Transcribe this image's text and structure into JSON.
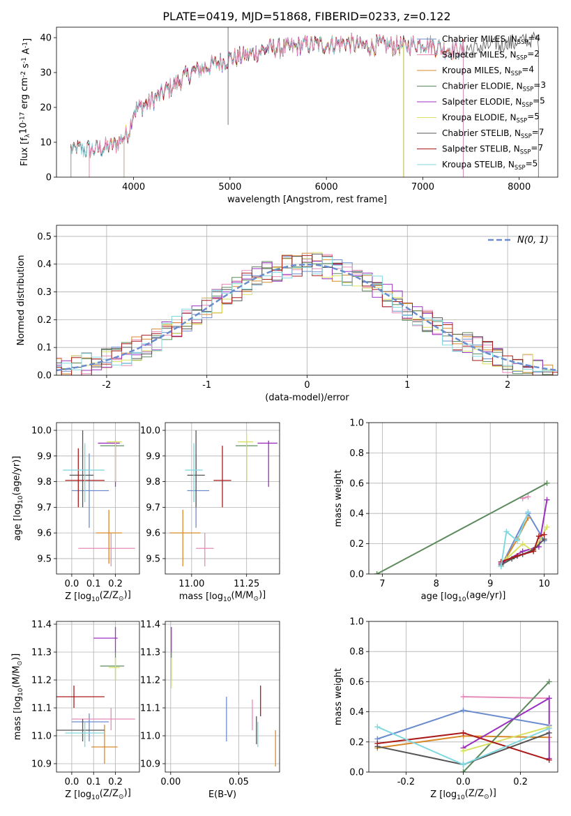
{
  "figure_title": "PLATE=0419, MJD=51868, FIBERID=0233, z=0.122",
  "model_colors": [
    "#6a8ccf",
    "#e68ab8",
    "#d88a2a",
    "#5c8a5c",
    "#9b30c0",
    "#d8e060",
    "#555555",
    "#aa1a1a",
    "#80d8e0"
  ],
  "chart_data": [
    {
      "id": "spectrum",
      "type": "line",
      "title": "PLATE=0419, MJD=51868, FIBERID=0233, z=0.122",
      "xlabel": "wavelength [Angstrom, rest frame]",
      "ylabel": "Flux [f$_\\lambda$10$^{-17}$ erg cm$^{-2}$ s$^{-1}$ A$^{-1}$]",
      "xlim": [
        3200,
        8400
      ],
      "ylim": [
        0,
        43
      ],
      "xticks": [
        4000,
        5000,
        6000,
        7000,
        8000
      ],
      "yticks": [
        0,
        10,
        20,
        30,
        40
      ],
      "grid": false,
      "legend_position": "upper right",
      "continuum": {
        "x": [
          3400,
          3600,
          3800,
          3950,
          4000,
          4200,
          4400,
          4600,
          4800,
          5000,
          5200,
          5400,
          5600,
          5800,
          6000,
          6200,
          6400,
          6600,
          6800,
          7000,
          7200,
          7400,
          7600,
          7800,
          8000,
          8200
        ],
        "y": [
          8,
          8,
          9,
          13,
          19,
          22,
          26,
          30,
          32,
          34,
          35,
          37,
          37,
          38,
          38,
          38.5,
          37.5,
          38,
          37.5,
          38.5,
          37,
          36.5,
          37,
          38,
          39,
          39.5
        ]
      },
      "series": [
        {
          "name": "Chabrier MILES, N$_{SSP}$=4",
          "x_range": [
            3540,
            7420
          ]
        },
        {
          "name": "Salpeter MILES, N$_{SSP}$=2",
          "x_range": [
            3540,
            7420
          ]
        },
        {
          "name": "Kroupa MILES, N$_{SSP}$=4",
          "x_range": [
            3540,
            7420
          ]
        },
        {
          "name": "Chabrier ELODIE, N$_{SSP}$=3",
          "x_range": [
            3900,
            6800
          ]
        },
        {
          "name": "Salpeter ELODIE, N$_{SSP}$=5",
          "x_range": [
            3900,
            6800
          ]
        },
        {
          "name": "Kroupa ELODIE, N$_{SSP}$=5",
          "x_range": [
            3900,
            6800
          ]
        },
        {
          "name": "Chabrier STELIB, N$_{SSP}$=7",
          "x_range": [
            3350,
            8200
          ]
        },
        {
          "name": "Salpeter STELIB, N$_{SSP}$=7",
          "x_range": [
            3350,
            7420
          ]
        },
        {
          "name": "Kroupa STELIB, N$_{SSP}$=5",
          "x_range": [
            3350,
            7420
          ]
        }
      ]
    },
    {
      "id": "residuals",
      "type": "histogram",
      "xlabel": "(data-model)/error",
      "ylabel": "Normed distribution",
      "xlim": [
        -2.5,
        2.5
      ],
      "ylim": [
        0,
        0.54
      ],
      "xticks": [
        -2,
        -1,
        0,
        1,
        2
      ],
      "yticks": [
        0.0,
        0.1,
        0.2,
        0.3,
        0.4,
        0.5
      ],
      "grid": true,
      "legend_position": "upper right",
      "bin_width": 0.1,
      "reference_curve": {
        "name": "$\\mathcal{N}(0,1)$",
        "color": "#6a8ccf",
        "style": "dashed"
      }
    },
    {
      "id": "age_vs_Z",
      "type": "errorbar",
      "xlabel": "Z [log$_{10}$(Z/Z$_\\odot$)]",
      "ylabel": "age  [log$_{10}$(age/yr)]",
      "xlim": [
        -0.07,
        0.31
      ],
      "ylim": [
        9.44,
        10.03
      ],
      "xticks": [
        0.0,
        0.1,
        0.2
      ],
      "yticks": [
        9.5,
        9.6,
        9.7,
        9.8,
        9.9,
        10.0
      ],
      "grid": true,
      "points": [
        {
          "x": 0.08,
          "y": 9.765,
          "xlo": 0.0,
          "xhi": 0.17,
          "ylo": 9.62,
          "yhi": 9.91
        },
        {
          "x": 0.18,
          "y": 9.54,
          "xlo": 0.03,
          "xhi": 0.29,
          "ylo": 9.47,
          "yhi": 9.6
        },
        {
          "x": 0.17,
          "y": 9.6,
          "xlo": 0.11,
          "xhi": 0.23,
          "ylo": 9.48,
          "yhi": 9.69
        },
        {
          "x": 0.2,
          "y": 9.94,
          "xlo": 0.13,
          "xhi": 0.24,
          "ylo": 9.8,
          "yhi": 9.96
        },
        {
          "x": 0.2,
          "y": 9.95,
          "xlo": 0.12,
          "xhi": 0.22,
          "ylo": 9.78,
          "yhi": 9.96
        },
        {
          "x": 0.2,
          "y": 9.955,
          "xlo": 0.16,
          "xhi": 0.23,
          "ylo": 9.8,
          "yhi": 9.96
        },
        {
          "x": 0.05,
          "y": 9.825,
          "xlo": -0.01,
          "xhi": 0.1,
          "ylo": 9.7,
          "yhi": 10.0
        },
        {
          "x": 0.03,
          "y": 9.805,
          "xlo": -0.03,
          "xhi": 0.15,
          "ylo": 9.7,
          "yhi": 9.93
        },
        {
          "x": 0.06,
          "y": 9.845,
          "xlo": -0.04,
          "xhi": 0.15,
          "ylo": 9.72,
          "yhi": 9.95
        }
      ]
    },
    {
      "id": "age_vs_mass",
      "type": "errorbar",
      "xlabel": "mass [log$_{10}$(M/M$_\\odot$)]",
      "ylabel": "",
      "xlim": [
        10.88,
        11.4
      ],
      "ylim": [
        9.44,
        10.03
      ],
      "xticks": [
        11.0,
        11.25
      ],
      "yticks": [
        9.5,
        9.6,
        9.7,
        9.8,
        9.9,
        10.0
      ],
      "grid": true,
      "points": [
        {
          "x": 11.02,
          "y": 9.765,
          "xlo": 10.98,
          "xhi": 11.08,
          "ylo": 9.62,
          "yhi": 9.91
        },
        {
          "x": 11.06,
          "y": 9.54,
          "xlo": 11.02,
          "xhi": 11.1,
          "ylo": 9.47,
          "yhi": 9.6
        },
        {
          "x": 10.96,
          "y": 9.6,
          "xlo": 10.9,
          "xhi": 11.04,
          "ylo": 9.47,
          "yhi": 9.69
        },
        {
          "x": 11.25,
          "y": 9.94,
          "xlo": 11.2,
          "xhi": 11.3,
          "ylo": 9.8,
          "yhi": 9.96
        },
        {
          "x": 11.35,
          "y": 9.95,
          "xlo": 11.3,
          "xhi": 11.39,
          "ylo": 9.78,
          "yhi": 9.96
        },
        {
          "x": 11.25,
          "y": 9.955,
          "xlo": 11.21,
          "xhi": 11.28,
          "ylo": 9.8,
          "yhi": 9.99
        },
        {
          "x": 11.02,
          "y": 9.825,
          "xlo": 10.98,
          "xhi": 11.06,
          "ylo": 9.7,
          "yhi": 10.0
        },
        {
          "x": 11.14,
          "y": 9.805,
          "xlo": 11.1,
          "xhi": 11.18,
          "ylo": 9.7,
          "yhi": 9.94
        },
        {
          "x": 11.01,
          "y": 9.845,
          "xlo": 10.97,
          "xhi": 11.05,
          "ylo": 9.72,
          "yhi": 9.95
        }
      ]
    },
    {
      "id": "weight_vs_age",
      "type": "line",
      "xlabel": "age  [log$_{10}$(age/yr)]",
      "ylabel": "mass weight",
      "xlim": [
        6.75,
        10.25
      ],
      "ylim": [
        0,
        1
      ],
      "xticks": [
        7,
        8,
        9,
        10
      ],
      "yticks": [
        0.0,
        0.2,
        0.4,
        0.6,
        0.8,
        1.0
      ],
      "grid": true,
      "series": [
        {
          "x": [
            9.2,
            9.7,
            10.0
          ],
          "y": [
            0.05,
            0.4,
            0.22
          ]
        },
        {
          "x": [
            9.6,
            9.7
          ],
          "y": [
            0.5,
            0.51
          ]
        },
        {
          "x": [
            9.2,
            9.5,
            9.7
          ],
          "y": [
            0.05,
            0.23,
            0.37
          ]
        },
        {
          "x": [
            6.9,
            10.05
          ],
          "y": [
            0.0,
            0.6
          ]
        },
        {
          "x": [
            9.2,
            9.6,
            9.9,
            10.05
          ],
          "y": [
            0.07,
            0.15,
            0.18,
            0.49
          ]
        },
        {
          "x": [
            9.3,
            9.6,
            9.8,
            10.05
          ],
          "y": [
            0.1,
            0.2,
            0.15,
            0.31
          ]
        },
        {
          "x": [
            9.2,
            9.4,
            9.6,
            9.8,
            10.0
          ],
          "y": [
            0.06,
            0.1,
            0.13,
            0.16,
            0.23
          ]
        },
        {
          "x": [
            9.2,
            9.5,
            9.8,
            9.9,
            10.0
          ],
          "y": [
            0.08,
            0.12,
            0.15,
            0.25,
            0.26
          ]
        },
        {
          "x": [
            9.2,
            9.3,
            9.5,
            9.7
          ],
          "y": [
            0.05,
            0.28,
            0.22,
            0.41
          ]
        }
      ]
    },
    {
      "id": "mass_vs_Z",
      "type": "errorbar",
      "xlabel": "Z [log$_{10}$(Z/Z$_\\odot$)]",
      "ylabel": "mass [log$_{10}$(M/M$_\\odot$)]",
      "xlim": [
        -0.07,
        0.31
      ],
      "ylim": [
        10.87,
        11.41
      ],
      "xticks": [
        0.0,
        0.1,
        0.2
      ],
      "yticks": [
        10.9,
        11.0,
        11.1,
        11.2,
        11.3,
        11.4
      ],
      "grid": true,
      "points": [
        {
          "x": 0.08,
          "y": 11.05,
          "xlo": 0.0,
          "xhi": 0.17,
          "ylo": 10.98,
          "yhi": 11.08
        },
        {
          "x": 0.18,
          "y": 11.06,
          "xlo": 0.0,
          "xhi": 0.29,
          "ylo": 11.02,
          "yhi": 11.1
        },
        {
          "x": 0.15,
          "y": 10.96,
          "xlo": 0.09,
          "xhi": 0.21,
          "ylo": 10.9,
          "yhi": 11.04
        },
        {
          "x": 0.2,
          "y": 11.25,
          "xlo": 0.13,
          "xhi": 0.24,
          "ylo": 11.2,
          "yhi": 11.3
        },
        {
          "x": 0.2,
          "y": 11.35,
          "xlo": 0.1,
          "xhi": 0.21,
          "ylo": 11.3,
          "yhi": 11.39
        },
        {
          "x": 0.2,
          "y": 11.245,
          "xlo": 0.17,
          "xhi": 0.22,
          "ylo": 11.2,
          "yhi": 11.28
        },
        {
          "x": 0.05,
          "y": 11.02,
          "xlo": -0.07,
          "xhi": 0.15,
          "ylo": 10.98,
          "yhi": 11.06
        },
        {
          "x": 0.01,
          "y": 11.14,
          "xlo": -0.07,
          "xhi": 0.15,
          "ylo": 11.1,
          "yhi": 11.18
        },
        {
          "x": 0.06,
          "y": 11.01,
          "xlo": -0.03,
          "xhi": 0.15,
          "ylo": 10.96,
          "yhi": 11.05
        }
      ]
    },
    {
      "id": "mass_vs_ebv",
      "type": "errorbar",
      "xlabel": "E(B-V)",
      "ylabel": "",
      "xlim": [
        -0.004,
        0.08
      ],
      "ylim": [
        10.87,
        11.41
      ],
      "xticks": [
        0.0,
        0.05
      ],
      "yticks": [
        10.9,
        11.0,
        11.1,
        11.2,
        11.3,
        11.4
      ],
      "grid": true,
      "points": [
        {
          "x": 0.041,
          "y": 11.05,
          "ylo": 10.98,
          "yhi": 11.14
        },
        {
          "x": 0.06,
          "y": 11.06,
          "ylo": 11.02,
          "yhi": 11.13
        },
        {
          "x": 0.077,
          "y": 10.96,
          "ylo": 10.89,
          "yhi": 11.02
        },
        {
          "x": 0.0005,
          "y": 11.25,
          "ylo": 11.2,
          "yhi": 11.3
        },
        {
          "x": 0.0005,
          "y": 11.35,
          "ylo": 11.3,
          "yhi": 11.39
        },
        {
          "x": 0.0005,
          "y": 11.245,
          "ylo": 11.17,
          "yhi": 11.28
        },
        {
          "x": 0.063,
          "y": 11.02,
          "ylo": 10.97,
          "yhi": 11.07
        },
        {
          "x": 0.066,
          "y": 11.14,
          "ylo": 11.07,
          "yhi": 11.18
        },
        {
          "x": 0.064,
          "y": 11.0,
          "ylo": 10.96,
          "yhi": 11.05
        }
      ]
    },
    {
      "id": "weight_vs_Z",
      "type": "line",
      "xlabel": "Z [log$_{10}$(Z/Z$_\\odot$)]",
      "ylabel": "mass weight",
      "xlim": [
        -0.33,
        0.33
      ],
      "ylim": [
        0,
        1
      ],
      "xticks": [
        -0.2,
        0.0,
        0.2
      ],
      "yticks": [
        0.0,
        0.2,
        0.4,
        0.6,
        0.8,
        1.0
      ],
      "grid": true,
      "series": [
        {
          "x": [
            -0.3,
            0.0,
            0.3
          ],
          "y": [
            0.22,
            0.41,
            0.31
          ]
        },
        {
          "x": [
            0.0,
            0.3
          ],
          "y": [
            0.5,
            0.49
          ]
        },
        {
          "x": [
            -0.3,
            0.0,
            0.3
          ],
          "y": [
            0.16,
            0.24,
            0.23
          ]
        },
        {
          "x": [
            0.0,
            0.3
          ],
          "y": [
            0.0,
            0.6
          ]
        },
        {
          "x": [
            0.0,
            0.3,
            0.3
          ],
          "y": [
            0.16,
            0.49,
            0.09
          ]
        },
        {
          "x": [
            0.0,
            0.3
          ],
          "y": [
            0.14,
            0.3
          ]
        },
        {
          "x": [
            -0.3,
            0.0,
            0.3
          ],
          "y": [
            0.17,
            0.05,
            0.26
          ]
        },
        {
          "x": [
            -0.3,
            0.0,
            0.3
          ],
          "y": [
            0.19,
            0.26,
            0.08
          ]
        },
        {
          "x": [
            -0.3,
            0.0,
            0.3
          ],
          "y": [
            0.3,
            0.05,
            0.29
          ]
        }
      ]
    }
  ]
}
